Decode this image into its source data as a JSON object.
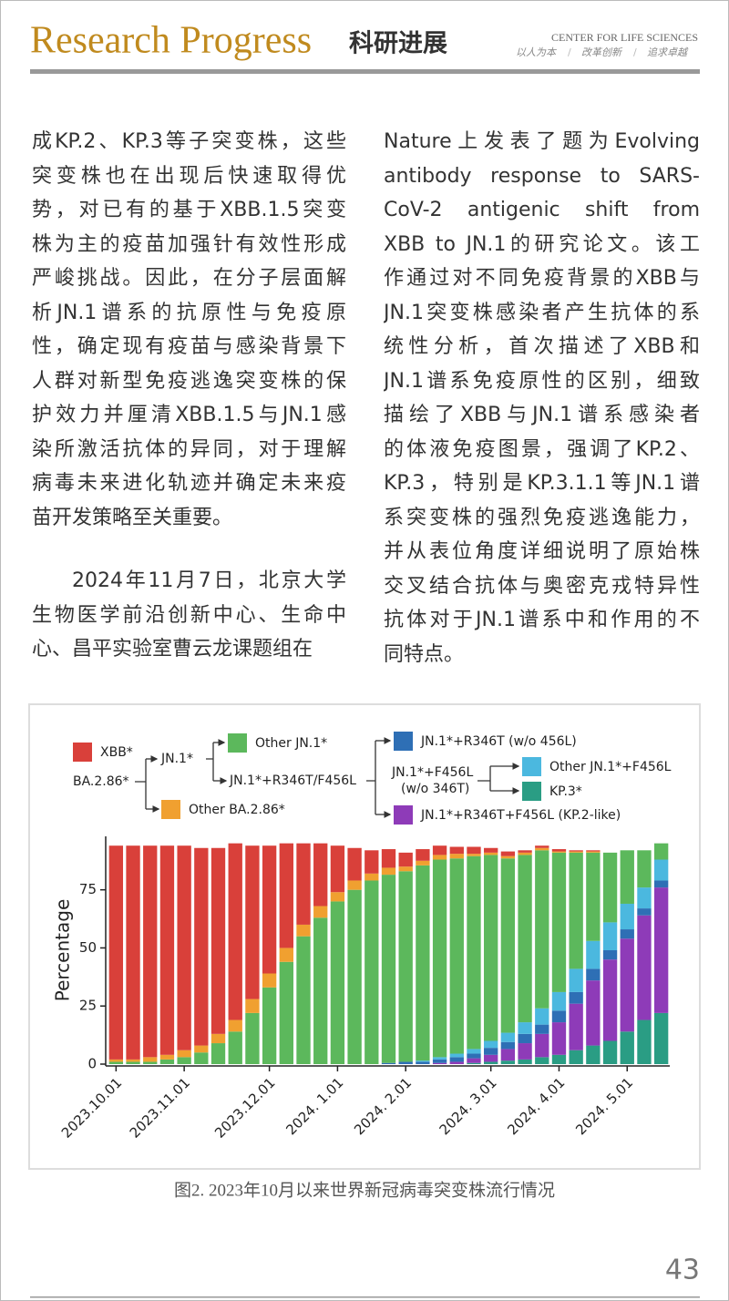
{
  "header": {
    "title": "Research Progress",
    "title_cn": "科研进展",
    "org": "CENTER FOR LIFE SCIENCES",
    "motto": [
      "以人为本",
      "改革创新",
      "追求卓越"
    ]
  },
  "body": {
    "left": {
      "paragraphs": [
        [
          "成KP.2、KP.3等子突变株，这些",
          "突变株也在出现后快速取得优",
          "势，对已有的基于XBB.1.5突变",
          "株为主的疫苗加强针有效性形成",
          "严峻挑战。因此，在分子层面解",
          "析JN.1谱系的抗原性与免疫原",
          "性，确定现有疫苗与感染背景下",
          "人群对新型免疫逃逸突变株的保",
          "护效力并厘清XBB.1.5与JN.1感",
          "染所激活抗体的异同，对于理解",
          "病毒未来进化轨迹并确定未来疫",
          "苗开发策略至关重要。"
        ],
        [
          "2024年11月7日，北京大学",
          "生物医学前沿创新中心、生命中",
          "心、昌平实验室曹云龙课题组在"
        ]
      ]
    },
    "right": {
      "paragraphs": [
        [
          "Nature上发表了题为Evolving",
          "antibody response to SARS-",
          "CoV-2 antigenic shift from",
          "XBB to JN.1的研究论文。该工",
          "作通过对不同免疫背景的XBB与",
          "JN.1突变株感染者产生抗体的系",
          "统性分析，首次描述了XBB和",
          "JN.1谱系免疫原性的区别，细致",
          "描绘了XBB与JN.1谱系感染者",
          "的体液免疫图景，强调了KP.2、",
          "KP.3，特别是KP.3.1.1等JN.1谱",
          "系突变株的强烈免疫逃逸能力，",
          "并从表位角度详细说明了原始株",
          "交叉结合抗体与奥密克戎特异性",
          "抗体对于JN.1谱系中和作用的不",
          "同特点。"
        ]
      ]
    }
  },
  "chart_data": {
    "type": "stacked_bar",
    "ylabel": "Percentage",
    "tree_labels": [
      "BA.2.86*",
      "JN.1*",
      "JN.1*+R346T/F456L",
      "JN.1*+F456L",
      "(w/o 346T)"
    ],
    "categories": [
      "2023.10.01",
      null,
      null,
      null,
      "2023.11.01",
      null,
      null,
      null,
      null,
      "2023.12.01",
      null,
      null,
      null,
      "2024. 1.01",
      null,
      null,
      null,
      "2024. 2.01",
      null,
      null,
      null,
      null,
      "2024. 3.01",
      null,
      null,
      null,
      "2024. 4.01",
      null,
      null,
      null,
      "2024. 5.01",
      null,
      null
    ],
    "series": [
      {
        "name": "KP.3*",
        "color": "#2a9d84",
        "values": [
          0,
          0,
          0,
          0,
          0,
          0,
          0,
          0,
          0,
          0,
          0,
          0,
          0,
          0,
          0,
          0,
          0,
          0,
          0,
          0,
          0,
          0.5,
          1,
          1.5,
          2,
          3,
          4,
          6,
          8,
          10,
          14,
          19,
          22
        ]
      },
      {
        "name": "JN.1*+R346T+F456L (KP.2-like)",
        "color": "#8e3bb8",
        "values": [
          0,
          0,
          0,
          0,
          0,
          0,
          0,
          0,
          0,
          0,
          0,
          0,
          0,
          0,
          0,
          0,
          0,
          0,
          0,
          0.5,
          1,
          2,
          3,
          5,
          7,
          10,
          14,
          20,
          28,
          35,
          40,
          45,
          54
        ]
      },
      {
        "name": "JN.1*+R346T (w/o 456L)",
        "color": "#2e6fb5",
        "values": [
          0,
          0,
          0,
          0,
          0,
          0,
          0,
          0,
          0,
          0,
          0,
          0,
          0,
          0,
          0,
          0,
          0.5,
          1,
          1,
          1.5,
          2,
          2,
          3,
          3,
          4,
          4,
          5,
          5,
          5,
          4,
          4,
          3,
          3
        ]
      },
      {
        "name": "Other JN.1*+F456L",
        "color": "#4bb8df",
        "values": [
          0,
          0,
          0,
          0,
          0,
          0,
          0,
          0,
          0,
          0,
          0,
          0,
          0,
          0,
          0,
          0,
          0,
          0,
          0.5,
          1,
          1.5,
          2,
          3,
          4,
          5,
          7,
          8,
          10,
          12,
          12,
          11,
          9,
          9
        ]
      },
      {
        "name": "Other JN.1*",
        "color": "#5cb85c",
        "values": [
          1,
          1,
          1,
          2,
          3,
          5,
          9,
          14,
          22,
          33,
          44,
          55,
          63,
          70,
          75,
          79,
          81,
          82,
          84,
          85,
          84,
          83,
          80,
          75,
          72,
          68,
          60,
          50,
          38,
          30,
          23,
          16,
          7
        ]
      },
      {
        "name": "Other BA.2.86*",
        "color": "#f0a030",
        "values": [
          1,
          1,
          2,
          2,
          3,
          3,
          4,
          5,
          6,
          6,
          6,
          5,
          5,
          4,
          4,
          3,
          3,
          2,
          2,
          2,
          2,
          1,
          1,
          1,
          1,
          1,
          0.5,
          0.5,
          0.5,
          0,
          0,
          0,
          0
        ]
      },
      {
        "name": "XBB*",
        "color": "#d9403a",
        "values": [
          92,
          92,
          91,
          90,
          88,
          85,
          80,
          76,
          66,
          55,
          45,
          35,
          27,
          20,
          14,
          10,
          8,
          6,
          5,
          4,
          3,
          3,
          2,
          2,
          1,
          1,
          1,
          0.5,
          0.5,
          0,
          0,
          0,
          0
        ]
      }
    ],
    "ylim": [
      0,
      98
    ],
    "yticks": [
      0,
      25,
      50,
      75
    ]
  },
  "caption": "图2. 2023年10月以来世界新冠病毒突变株流行情况",
  "page_number": "43"
}
